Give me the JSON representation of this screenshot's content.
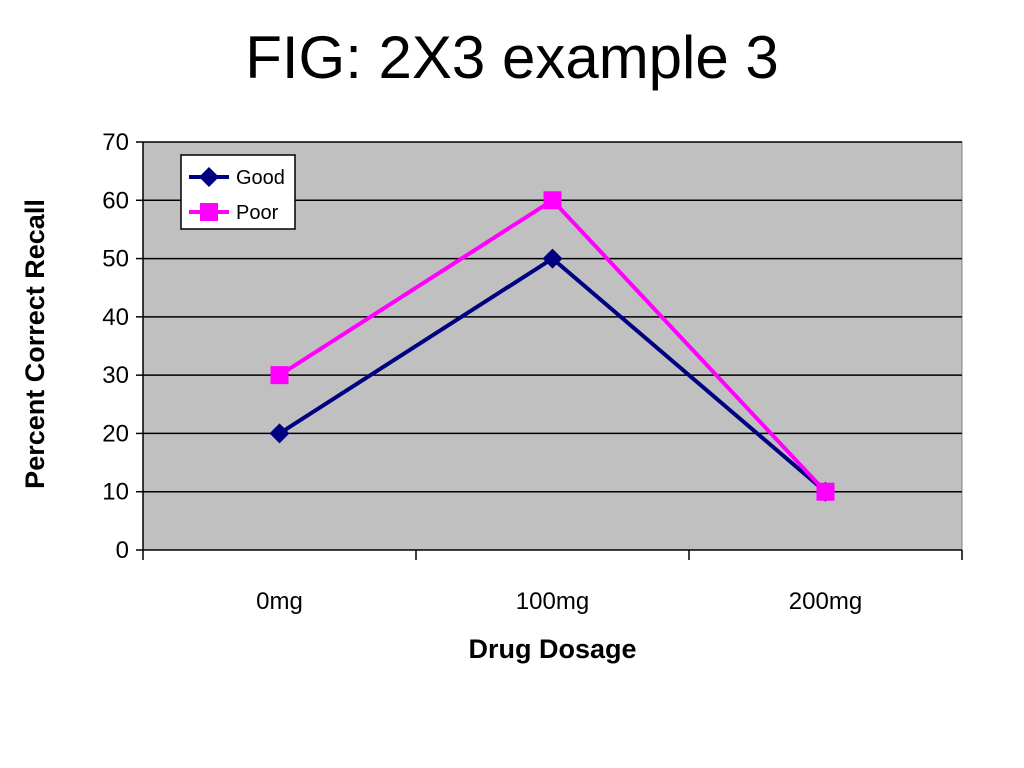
{
  "title": "FIG: 2X3 example 3",
  "chart_data": {
    "type": "line",
    "title": "FIG: 2X3 example 3",
    "xlabel": "Drug Dosage",
    "ylabel": "Percent Correct Recall",
    "categories": [
      "0mg",
      "100mg",
      "200mg"
    ],
    "ylim": [
      0,
      70
    ],
    "yticks": [
      0,
      10,
      20,
      30,
      40,
      50,
      60,
      70
    ],
    "grid": true,
    "legend_position": "top-left",
    "plot_background": "#c0c0c0",
    "series": [
      {
        "name": "Good",
        "values": [
          20,
          50,
          10
        ],
        "color": "#000080",
        "marker": "diamond"
      },
      {
        "name": "Poor",
        "values": [
          30,
          60,
          10
        ],
        "color": "#ff00ff",
        "marker": "square"
      }
    ]
  }
}
